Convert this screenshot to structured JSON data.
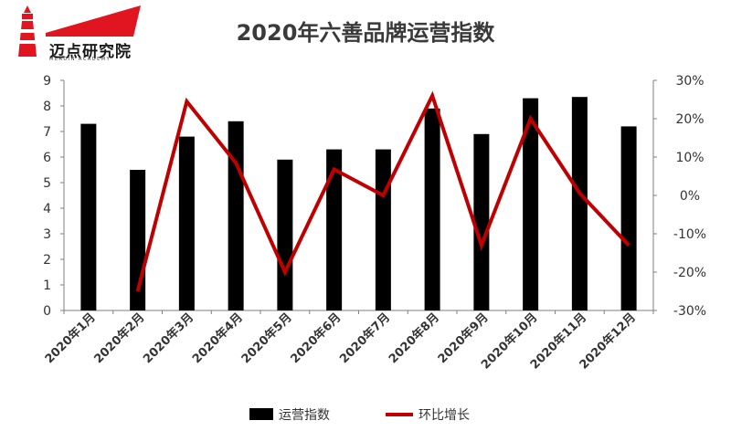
{
  "brand": {
    "name": "迈点研究院",
    "subtitle": "MEADIN ACADEMY",
    "logo_color": "#e0151f"
  },
  "chart_data": {
    "type": "bar",
    "title": "2020年六善品牌运营指数",
    "categories": [
      "2020年1月",
      "2020年2月",
      "2020年3月",
      "2020年4月",
      "2020年5月",
      "2020年6月",
      "2020年7月",
      "2020年8月",
      "2020年9月",
      "2020年10月",
      "2020年11月",
      "2020年12月"
    ],
    "series": [
      {
        "name": "运营指数",
        "type": "bar",
        "axis": "left",
        "color": "#000000",
        "values": [
          7.3,
          5.5,
          6.8,
          7.4,
          5.9,
          6.3,
          6.3,
          7.9,
          6.9,
          8.3,
          8.35,
          7.2
        ]
      },
      {
        "name": "环比增长",
        "type": "line",
        "axis": "right",
        "color": "#c00000",
        "values": [
          null,
          -25,
          24.5,
          8.5,
          -20,
          6.8,
          0,
          26,
          -13,
          20,
          0.6,
          -13
        ]
      }
    ],
    "y_left": {
      "min": 0,
      "max": 9,
      "ticks": [
        "0",
        "1",
        "2",
        "3",
        "4",
        "5",
        "6",
        "7",
        "8",
        "9"
      ]
    },
    "y_right": {
      "min": -30,
      "max": 30,
      "ticks": [
        "-30%",
        "-20%",
        "-10%",
        "0%",
        "10%",
        "20%",
        "30%"
      ]
    },
    "grid": false,
    "legend_position": "bottom"
  }
}
